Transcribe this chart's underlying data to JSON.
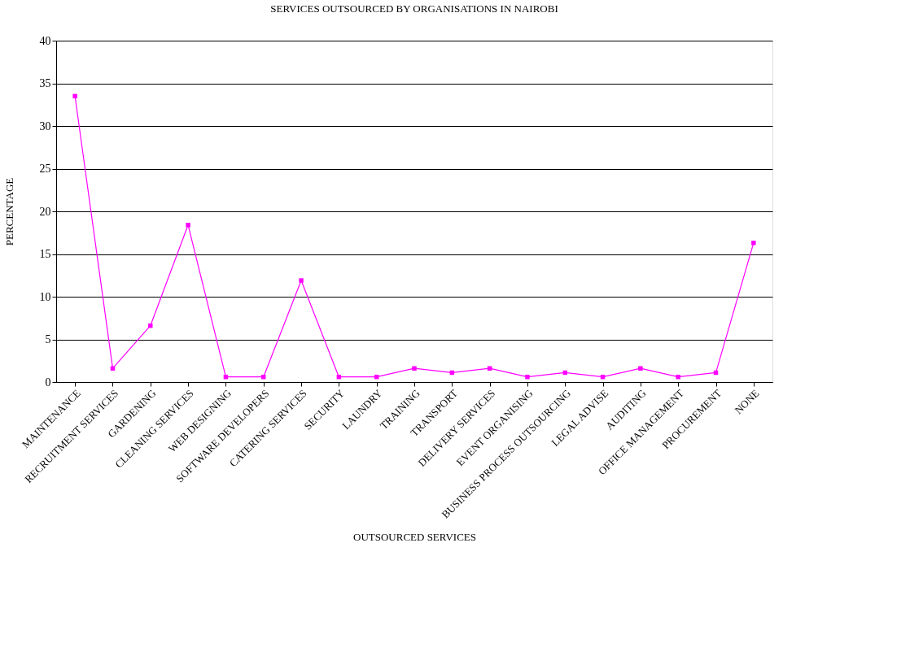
{
  "chart_data": {
    "type": "line",
    "title": "SERVICES OUTSOURCED BY ORGANISATIONS IN NAIROBI",
    "xlabel": "OUTSOURCED SERVICES",
    "ylabel": "PERCENTAGE",
    "categories": [
      "MAINTENANCE",
      "RECRUITMENT SERVICES",
      "GARDENING",
      "CLEANING SERVICES",
      "WEB DESIGNING",
      "SOFTWARE DEVELOPERS",
      "CATERING SERVICES",
      "SECURITY",
      "LAUNDRY",
      "TRAINING",
      "TRANSPORT",
      "DELIVERY SERVICES",
      "EVENT ORGANISING",
      "BUSINESS PROCESS OUTSOURCING",
      "LEGAL ADVISE",
      "AUDITING",
      "OFFICE MANAGEMENT",
      "PROCUREMENT",
      "NONE"
    ],
    "series": [
      {
        "color": "#ff00ff",
        "values": [
          33.5,
          1.6,
          6.6,
          18.4,
          0.6,
          0.6,
          11.9,
          0.6,
          0.6,
          1.6,
          1.1,
          1.6,
          0.6,
          1.1,
          0.6,
          1.6,
          0.6,
          1.1,
          16.3
        ]
      }
    ],
    "ylim": [
      0,
      40
    ],
    "yticks": [
      0,
      5,
      10,
      15,
      20,
      25,
      30,
      35,
      40
    ],
    "grid": "y",
    "marker": "square",
    "line_style": "solid",
    "legend": false
  }
}
